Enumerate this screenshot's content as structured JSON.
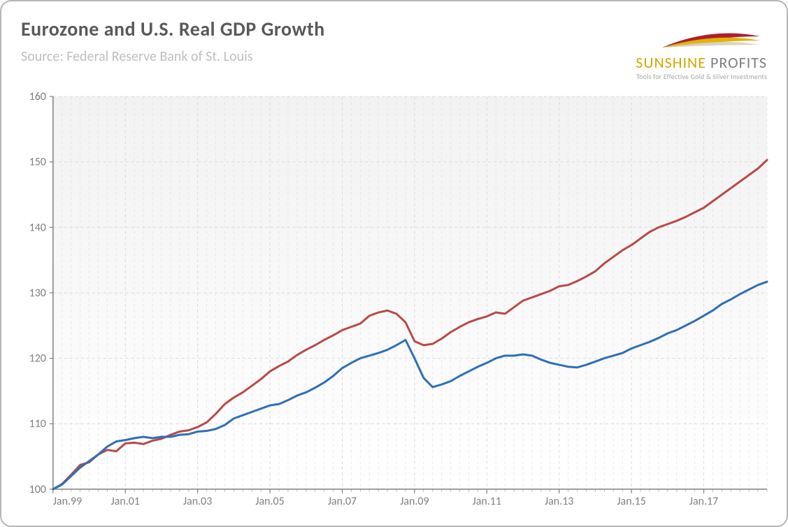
{
  "title": "Eurozone and U.S. Real GDP Growth",
  "source": "Source: Federal Reserve Bank of St. Louis",
  "logo": {
    "name_left": "SUNSHINE",
    "name_right": " PROFITS",
    "tagline": "Tools for Effective Gold & Silver Investments",
    "swoosh_colors": [
      "#b01e2d",
      "#e0b400",
      "#c9c2a8"
    ]
  },
  "chart": {
    "type": "line",
    "background_top": "#f2f2f2",
    "background_bottom": "#ffffff",
    "grid_color": "#d9d9d9",
    "axis_color": "#808080",
    "tick_label_color": "#808080",
    "tick_label_fontsize": 16,
    "title_fontsize": 28,
    "source_fontsize": 20,
    "line_width": 3,
    "x": {
      "label_prefix": "Jan.",
      "values": [
        "99",
        "",
        "",
        "",
        "",
        "",
        "",
        "",
        "01",
        "",
        "",
        "",
        "",
        "",
        "",
        "",
        "03",
        "",
        "",
        "",
        "",
        "",
        "",
        "",
        "05",
        "",
        "",
        "",
        "",
        "",
        "",
        "",
        "07",
        "",
        "",
        "",
        "",
        "",
        "",
        "",
        "09",
        "",
        "",
        "",
        "",
        "",
        "",
        "",
        "11",
        "",
        "",
        "",
        "",
        "",
        "",
        "",
        "13",
        "",
        "",
        "",
        "",
        "",
        "",
        "",
        "15",
        "",
        "",
        "",
        "",
        "",
        "",
        "",
        "17",
        "",
        "",
        "",
        "",
        "",
        "",
        ""
      ],
      "tick_indices": [
        0,
        8,
        16,
        24,
        32,
        40,
        48,
        56,
        64,
        72
      ],
      "tick_labels": [
        "Jan.99",
        "Jan.01",
        "Jan.03",
        "Jan.05",
        "Jan.07",
        "Jan.09",
        "Jan.11",
        "Jan.13",
        "Jan.15",
        "Jan.17"
      ],
      "n_points": 80
    },
    "y": {
      "min": 100,
      "max": 160,
      "ticks": [
        100,
        110,
        120,
        130,
        140,
        150,
        160
      ],
      "show_top_tick_label": true
    },
    "series": [
      {
        "name": "US",
        "color": "#b94a48",
        "data": [
          100.0,
          100.8,
          102.2,
          103.7,
          104.1,
          105.3,
          106.0,
          105.8,
          107.0,
          107.1,
          106.9,
          107.4,
          107.7,
          108.3,
          108.8,
          109.0,
          109.5,
          110.2,
          111.5,
          113.0,
          114.0,
          114.8,
          115.8,
          116.8,
          118.0,
          118.8,
          119.5,
          120.5,
          121.3,
          122.0,
          122.8,
          123.5,
          124.3,
          124.8,
          125.3,
          126.5,
          127.0,
          127.3,
          126.8,
          125.5,
          122.6,
          122.0,
          122.2,
          123.0,
          124.0,
          124.8,
          125.5,
          126.0,
          126.4,
          127.0,
          126.8,
          127.8,
          128.8,
          129.3,
          129.8,
          130.3,
          131.0,
          131.2,
          131.8,
          132.5,
          133.3,
          134.5,
          135.5,
          136.5,
          137.3,
          138.3,
          139.3,
          140.0,
          140.5,
          141.0,
          141.6,
          142.3,
          143.0,
          144.0,
          145.0,
          146.0,
          147.0,
          148.0,
          149.0,
          150.3
        ]
      },
      {
        "name": "Eurozone",
        "color": "#2f6fb7",
        "data": [
          100.0,
          100.7,
          102.0,
          103.3,
          104.3,
          105.3,
          106.5,
          107.3,
          107.5,
          107.8,
          108.0,
          107.8,
          108.0,
          108.0,
          108.3,
          108.4,
          108.8,
          108.9,
          109.2,
          109.8,
          110.8,
          111.3,
          111.8,
          112.3,
          112.8,
          113.0,
          113.6,
          114.3,
          114.8,
          115.5,
          116.3,
          117.3,
          118.5,
          119.3,
          120.0,
          120.4,
          120.8,
          121.3,
          122.0,
          122.8,
          120.0,
          117.0,
          115.6,
          116.0,
          116.5,
          117.3,
          118.0,
          118.7,
          119.3,
          120.0,
          120.4,
          120.4,
          120.6,
          120.4,
          119.8,
          119.3,
          119.0,
          118.7,
          118.6,
          119.0,
          119.5,
          120.0,
          120.4,
          120.8,
          121.5,
          122.0,
          122.5,
          123.1,
          123.8,
          124.3,
          125.0,
          125.7,
          126.5,
          127.3,
          128.3,
          129.0,
          129.8,
          130.5,
          131.2,
          131.7
        ]
      }
    ]
  }
}
